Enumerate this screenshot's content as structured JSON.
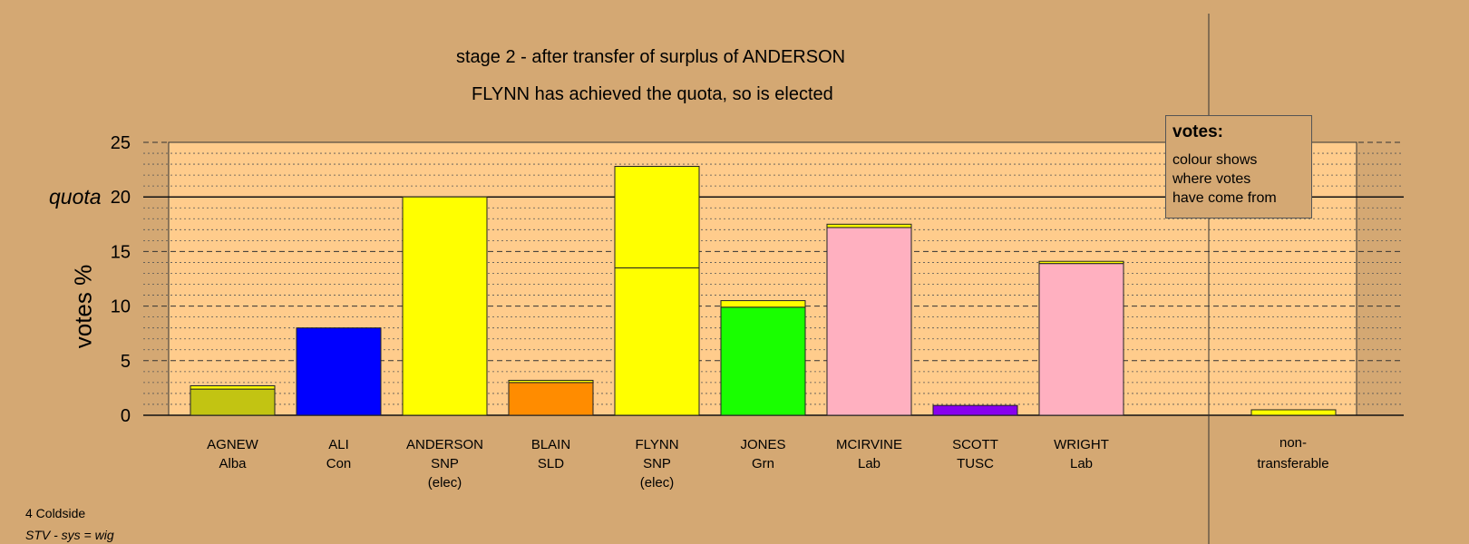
{
  "chart_data": {
    "type": "bar",
    "title": "stage 2 - after transfer of surplus of ANDERSON",
    "subtitle": "FLYNN has achieved the quota, so is elected",
    "ylabel": "votes %",
    "quota_label": "quota",
    "quota": 20,
    "ylim": [
      0,
      25
    ],
    "yticks": [
      0,
      5,
      10,
      15,
      20,
      25
    ],
    "grid": true,
    "categories": [
      {
        "name": "AGNEW",
        "party": "Alba",
        "status": ""
      },
      {
        "name": "ALI",
        "party": "Con",
        "status": ""
      },
      {
        "name": "ANDERSON",
        "party": "SNP",
        "status": "(elec)"
      },
      {
        "name": "BLAIN",
        "party": "SLD",
        "status": ""
      },
      {
        "name": "FLYNN",
        "party": "SNP",
        "status": "(elec)"
      },
      {
        "name": "JONES",
        "party": "Grn",
        "status": ""
      },
      {
        "name": "MCIRVINE",
        "party": "Lab",
        "status": ""
      },
      {
        "name": "SCOTT",
        "party": "TUSC",
        "status": ""
      },
      {
        "name": "WRIGHT",
        "party": "Lab",
        "status": ""
      }
    ],
    "bars": [
      {
        "segments": [
          {
            "value": 2.4,
            "color": "#c2c412"
          },
          {
            "value": 0.3,
            "color": "#ffff00"
          }
        ]
      },
      {
        "segments": [
          {
            "value": 8.0,
            "color": "#0000ff"
          }
        ]
      },
      {
        "segments": [
          {
            "value": 20.0,
            "color": "#ffff00"
          }
        ]
      },
      {
        "segments": [
          {
            "value": 3.0,
            "color": "#ff8c00"
          },
          {
            "value": 0.2,
            "color": "#ffff00"
          }
        ]
      },
      {
        "segments": [
          {
            "value": 13.5,
            "color": "#ffff00"
          },
          {
            "value": 9.3,
            "color": "#ffff00"
          }
        ]
      },
      {
        "segments": [
          {
            "value": 9.9,
            "color": "#19ff00"
          },
          {
            "value": 0.6,
            "color": "#ffff00"
          }
        ]
      },
      {
        "segments": [
          {
            "value": 17.2,
            "color": "#ffb0c0"
          },
          {
            "value": 0.3,
            "color": "#ffff00"
          }
        ]
      },
      {
        "segments": [
          {
            "value": 0.9,
            "color": "#8800ee"
          }
        ]
      },
      {
        "segments": [
          {
            "value": 13.9,
            "color": "#ffb0c0"
          },
          {
            "value": 0.2,
            "color": "#ffff00"
          }
        ]
      }
    ],
    "non_transferable": {
      "label_line1": "non-",
      "label_line2": "transferable",
      "value": 0.5,
      "color": "#ffff00"
    }
  },
  "colors": {
    "background": "#d4a873",
    "plot_background": "#ffcc8c",
    "grid": "#555555"
  },
  "legend": {
    "title": "votes:",
    "lines": [
      "colour shows",
      "where votes",
      "have come from"
    ]
  },
  "footer": {
    "ward": "4 Coldside",
    "system": "STV - sys = wig"
  }
}
